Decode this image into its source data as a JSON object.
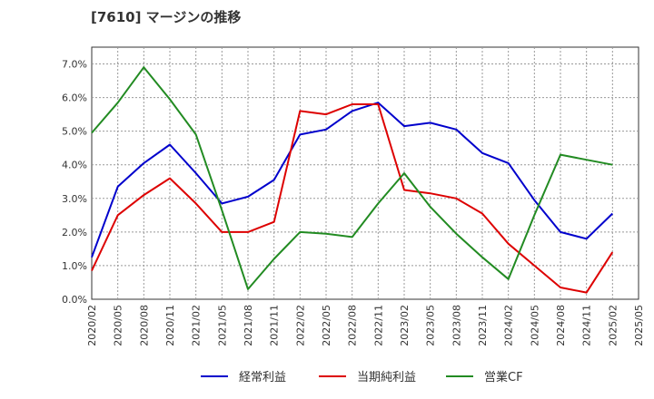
{
  "chart_data": {
    "type": "line",
    "title": "[7610]  マージンの推移",
    "xlabel": "",
    "ylabel": "",
    "ylim": [
      0,
      7.5
    ],
    "yticks": [
      0,
      1,
      2,
      3,
      4,
      5,
      6,
      7
    ],
    "ytick_labels": [
      "0.0%",
      "1.0%",
      "2.0%",
      "3.0%",
      "4.0%",
      "5.0%",
      "6.0%",
      "7.0%"
    ],
    "categories": [
      "2020/02",
      "2020/05",
      "2020/08",
      "2020/11",
      "2021/02",
      "2021/05",
      "2021/08",
      "2021/11",
      "2022/02",
      "2022/05",
      "2022/08",
      "2022/11",
      "2023/02",
      "2023/05",
      "2023/08",
      "2023/11",
      "2024/02",
      "2024/05",
      "2024/08",
      "2024/11",
      "2025/02",
      "2025/05"
    ],
    "grid": true,
    "legend_position": "bottom",
    "series": [
      {
        "name": "経常利益",
        "color": "#0000cc",
        "values": [
          1.25,
          3.35,
          4.05,
          4.6,
          3.75,
          2.85,
          3.05,
          3.55,
          4.9,
          5.05,
          5.6,
          5.85,
          5.15,
          5.25,
          5.05,
          4.35,
          4.05,
          2.95,
          2.0,
          1.8,
          2.55,
          null
        ]
      },
      {
        "name": "当期純利益",
        "color": "#dd0000",
        "values": [
          0.85,
          2.5,
          3.1,
          3.6,
          2.85,
          2.0,
          2.0,
          2.3,
          5.6,
          5.5,
          5.8,
          5.8,
          3.25,
          3.15,
          3.0,
          2.55,
          1.65,
          1.0,
          0.35,
          0.2,
          1.4,
          null
        ]
      },
      {
        "name": "営業CF",
        "color": "#228b22",
        "values": [
          4.95,
          5.85,
          6.9,
          5.95,
          4.9,
          2.65,
          0.3,
          1.2,
          2.0,
          1.95,
          1.85,
          2.85,
          3.75,
          2.75,
          1.95,
          1.25,
          0.6,
          2.5,
          4.3,
          4.15,
          4.0,
          null
        ]
      }
    ]
  }
}
